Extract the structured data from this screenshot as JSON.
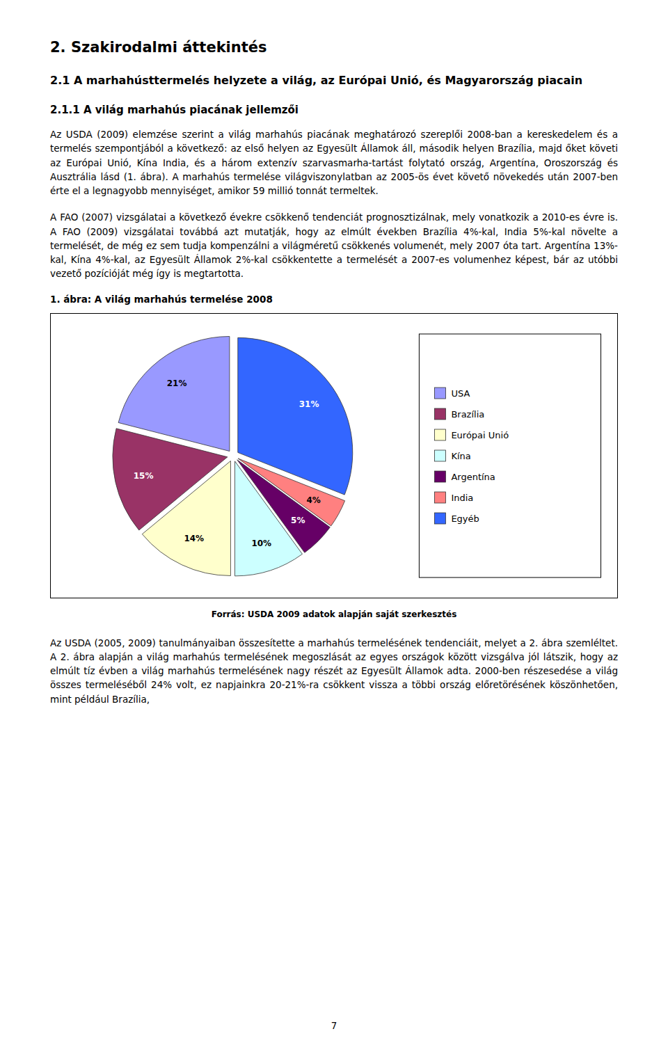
{
  "page_title": "2. Szakirodalmi áttekintés",
  "section_title": "2.1 A marhahústtermelés helyzete a világ, az Európai Unió, és Magyarország piacain",
  "subsection_title": "2.1.1 A világ marhahús piacának jellemzői",
  "body_text_1": "Az USDA (2009) elemzése szerint a világ marhahús piacának meghatározó szereplői 2008-ban a kereskedelem és a termelés szempontjából a következő: az első helyen az Egyesült Államok áll, második helyen Brazília, majd őket követi az Európai Unió, Kína India, és a három extenzív szarvasmarha-tartást folytató ország, Argentína, Oroszország és Ausztrália lásd (1. ábra). A marhahús termelése világviszonylatban az 2005-ös évet követő növekedés után 2007-ben érte el a legnagyobb mennyiséget, amikor 59 millió tonnát termeltek.",
  "body_text_2": "A FAO (2007) vizsgálatai a következő évekre csökkenő tendenciát prognosztizálnak, mely vonatkozik a 2010-es évre is.  A FAO (2009) vizsgálatai továbbá azt mutatják, hogy az elmúlt években Brazília 4%-kal, India 5%-kal növelte a termelését, de még ez sem tudja kompenzálni a világméretű csökkenés volumenét, mely 2007 óta tart. Argentína 13%-kal, Kína 4%-kal, az Egyesült Államok 2%-kal csökkentette a termelését a 2007-es volumenhez képest, bár az utóbbi vezető pozícióját még így is megtartotta.",
  "source_text": "Forrás: USDA 2009 adatok alapján saját szerkesztés",
  "footer_text": "Az USDA (2005, 2009) tanulmányaiban összesítette a marhahús termelésének tendenciáit, melyet a 2. ábra szemléltet. A 2. ábra alapján a világ marhahús termelésének megoszlását az egyes országok között vizsgálva jól látszik, hogy az elmúlt tíz évben a világ marhahús termelésének nagy részét az Egyesült Államok adta. 2000-ben részesedése a világ összes termeléséből 24% volt, ez napjainkra 20-21%-ra csökkent vissza a többi ország előretörésének köszönhetően, mint például Brazília,",
  "page_number": "7",
  "background_color": "#FFFFFF",
  "chart_data": {
    "type": "pie",
    "title": "1. ábra: A világ marhahús termelése 2008",
    "categories": [
      "USA",
      "Brazília",
      "Európai Unió",
      "Kína",
      "Argentína",
      "India",
      "Egyéb"
    ],
    "values": [
      21,
      15,
      14,
      10,
      5,
      4,
      31
    ],
    "value_labels": [
      "21%",
      "15%",
      "14%",
      "10%",
      "5%",
      "4%",
      "31%"
    ],
    "colors": [
      "#9999FF",
      "#993366",
      "#FFFFCC",
      "#CCFFFF",
      "#660066",
      "#FF8080",
      "#3366FF"
    ],
    "data_labels": true,
    "legend": "right"
  }
}
